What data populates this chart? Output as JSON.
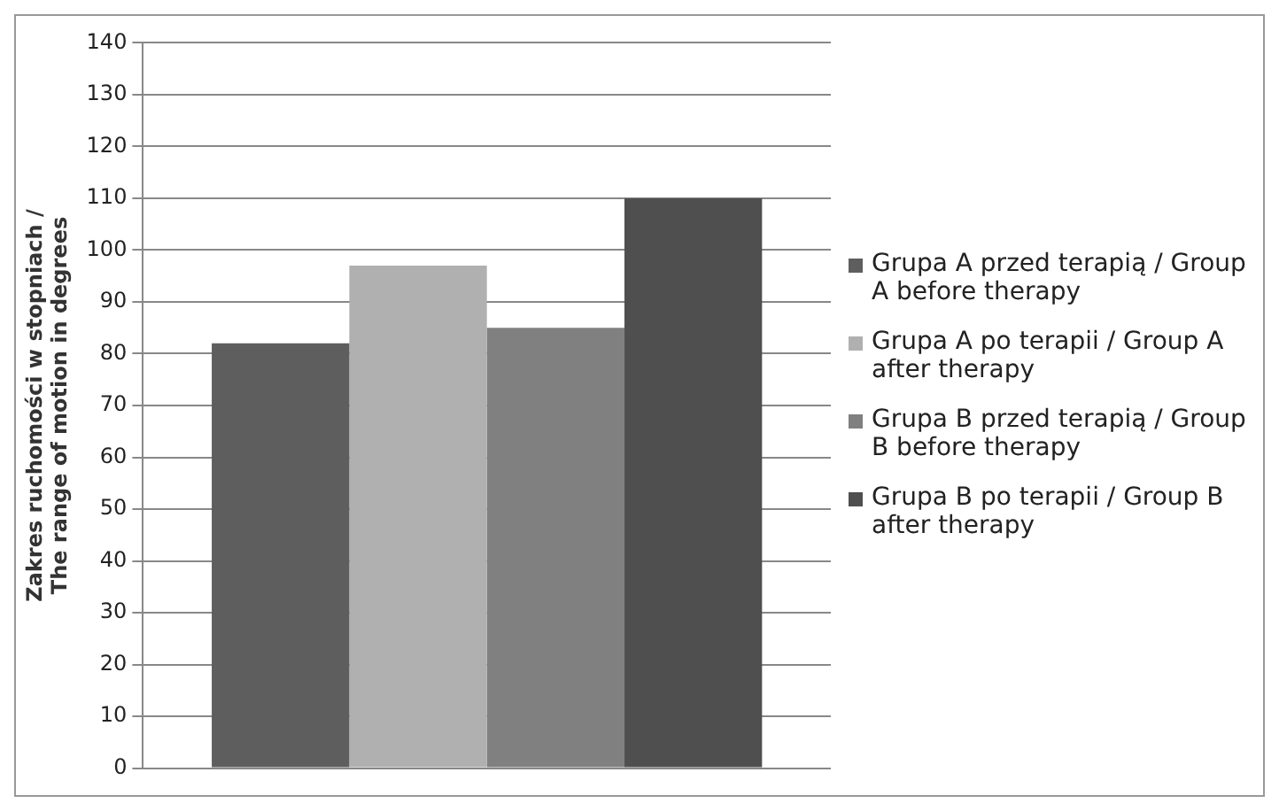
{
  "chart_data": {
    "type": "bar",
    "ylabel": "Zakres ruchomości w stopniach / The range of motion in degrees",
    "categories": [
      null
    ],
    "series": [
      {
        "name": "Grupa A przed terapią / Group A before therapy",
        "color": "#5e5e5e",
        "values": [
          82
        ]
      },
      {
        "name": "Grupa A po terapii / Group A after therapy",
        "color": "#b0b0b0",
        "values": [
          97
        ]
      },
      {
        "name": "Grupa B przed terapią / Group B before therapy",
        "color": "#808080",
        "values": [
          85
        ]
      },
      {
        "name": "Grupa B po terapii / Group B after therapy",
        "color": "#4f4f4f",
        "values": [
          110
        ]
      }
    ],
    "ylim": [
      0,
      140
    ],
    "yticks": [
      0,
      10,
      20,
      30,
      40,
      50,
      60,
      70,
      80,
      90,
      100,
      110,
      120,
      130,
      140
    ],
    "grid": "y",
    "legend": "right"
  }
}
